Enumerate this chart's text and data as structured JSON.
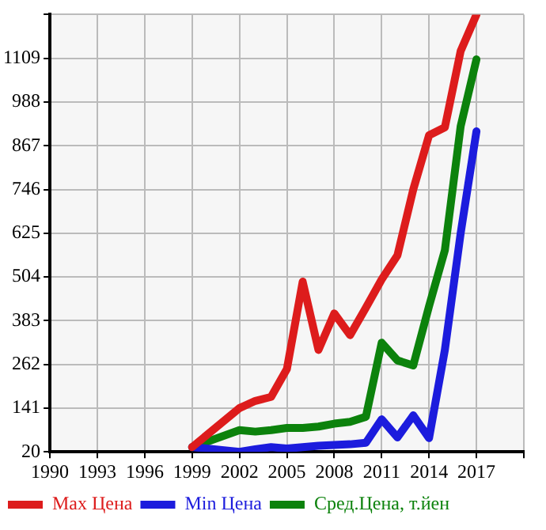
{
  "chart_data": {
    "type": "line",
    "x": [
      1999,
      2002,
      2003,
      2004,
      2005,
      2006,
      2007,
      2008,
      2009,
      2010,
      2011,
      2012,
      2013,
      2014,
      2015,
      2016,
      2017
    ],
    "series": [
      {
        "name": "Max Цена",
        "color": "#dd1c1c",
        "values": [
          33,
          141,
          161,
          172,
          249,
          491,
          302,
          403,
          343,
          419,
          497,
          564,
          746,
          896,
          918,
          1129,
          1230
        ]
      },
      {
        "name": "Min Цена",
        "color": "#1c1cdd",
        "values": [
          33,
          20,
          27,
          33,
          29,
          33,
          37,
          39,
          41,
          45,
          110,
          60,
          121,
          58,
          302,
          625,
          907
        ]
      },
      {
        "name": "Сред.Цена, т.йен",
        "color": "#0c820c",
        "values": [
          33,
          80,
          76,
          80,
          86,
          86,
          90,
          98,
          103,
          117,
          322,
          273,
          259,
          423,
          578,
          921,
          1106
        ]
      }
    ],
    "xlim": [
      1990,
      2020
    ],
    "xticks": [
      1990,
      1993,
      1996,
      1999,
      2002,
      2005,
      2008,
      2011,
      2014,
      2017,
      {
        "value": 2020,
        "label": null
      }
    ],
    "ylim": [
      20,
      1230
    ],
    "yticks": [
      20,
      141,
      262,
      383,
      504,
      625,
      746,
      867,
      988,
      1109,
      {
        "value": 1230,
        "label": null
      }
    ],
    "grid": true,
    "legend": "bottom",
    "marker": "none",
    "line_style": "solid"
  }
}
